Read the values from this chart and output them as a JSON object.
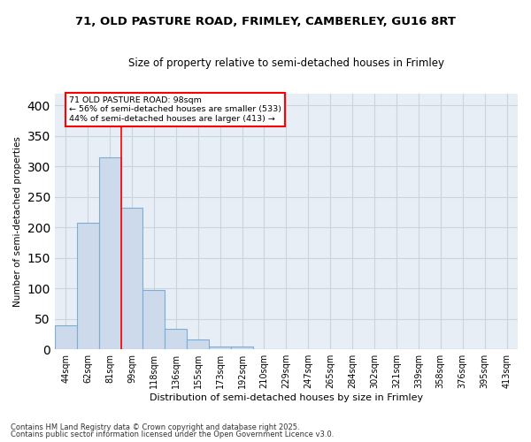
{
  "title_line1": "71, OLD PASTURE ROAD, FRIMLEY, CAMBERLEY, GU16 8RT",
  "title_line2": "Size of property relative to semi-detached houses in Frimley",
  "xlabel": "Distribution of semi-detached houses by size in Frimley",
  "ylabel": "Number of semi-detached properties",
  "categories": [
    "44sqm",
    "62sqm",
    "81sqm",
    "99sqm",
    "118sqm",
    "136sqm",
    "155sqm",
    "173sqm",
    "192sqm",
    "210sqm",
    "229sqm",
    "247sqm",
    "265sqm",
    "284sqm",
    "302sqm",
    "321sqm",
    "339sqm",
    "358sqm",
    "376sqm",
    "395sqm",
    "413sqm"
  ],
  "values": [
    40,
    207,
    315,
    232,
    98,
    33,
    16,
    5,
    5,
    0,
    0,
    0,
    0,
    0,
    0,
    0,
    0,
    0,
    0,
    0,
    0
  ],
  "bar_color": "#ccdaeb",
  "bar_edge_color": "#7eadd4",
  "pct_smaller": 56,
  "pct_larger": 44,
  "count_smaller": 533,
  "count_larger": 413,
  "ylim": [
    0,
    420
  ],
  "yticks": [
    0,
    50,
    100,
    150,
    200,
    250,
    300,
    350,
    400
  ],
  "grid_color": "#c8d4e0",
  "bg_color": "#e8eef5",
  "footer_line1": "Contains HM Land Registry data © Crown copyright and database right 2025.",
  "footer_line2": "Contains public sector information licensed under the Open Government Licence v3.0."
}
